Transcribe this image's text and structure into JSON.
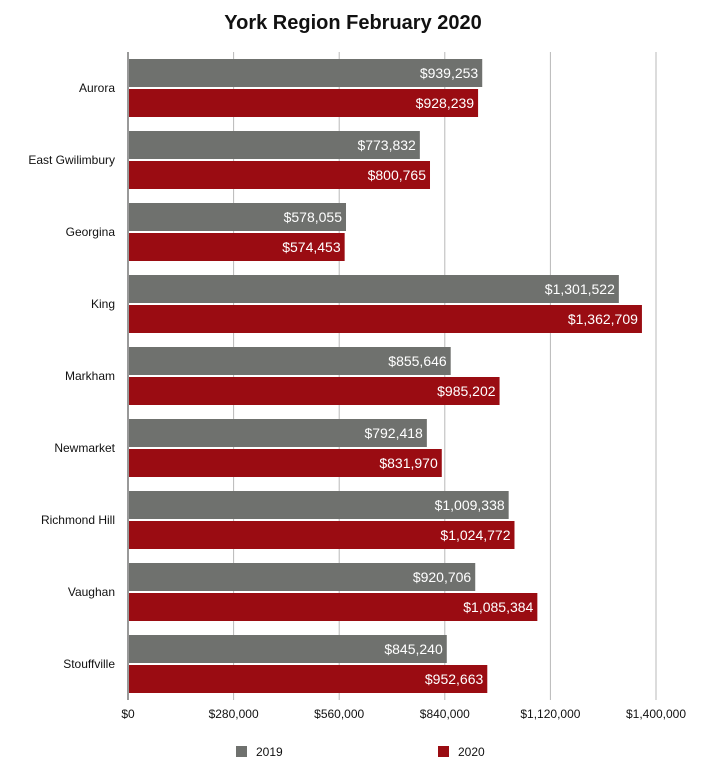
{
  "chart_data": {
    "type": "bar",
    "orientation": "horizontal",
    "title": "York Region February 2020",
    "xlabel": "",
    "ylabel": "",
    "categories": [
      "Aurora",
      "East Gwilimbury",
      "Georgina",
      "King",
      "Markham",
      "Newmarket",
      "Richmond Hill",
      "Vaughan",
      "Stouffville"
    ],
    "series": [
      {
        "name": "2019",
        "color": "#6f716e",
        "values": [
          939253,
          773832,
          578055,
          1301522,
          855646,
          792418,
          1009338,
          920706,
          845240
        ],
        "labels": [
          "$939,253",
          "$773,832",
          "$578,055",
          "$1,301,522",
          "$855,646",
          "$792,418",
          "$1,009,338",
          "$920,706",
          "$845,240"
        ]
      },
      {
        "name": "2020",
        "color": "#9a0c12",
        "values": [
          928239,
          800765,
          574453,
          1362709,
          985202,
          831970,
          1024772,
          1085384,
          952663
        ],
        "labels": [
          "$928,239",
          "$800,765",
          "$574,453",
          "$1,362,709",
          "$985,202",
          "$831,970",
          "$1,024,772",
          "$1,085,384",
          "$952,663"
        ]
      }
    ],
    "xlim": [
      0,
      1400000
    ],
    "xticks": [
      0,
      280000,
      560000,
      840000,
      1120000,
      1400000
    ],
    "xtick_labels": [
      "$0",
      "$280,000",
      "$560,000",
      "$840,000",
      "$1,120,000",
      "$1,400,000"
    ],
    "grid": true,
    "legend_position": "bottom"
  }
}
